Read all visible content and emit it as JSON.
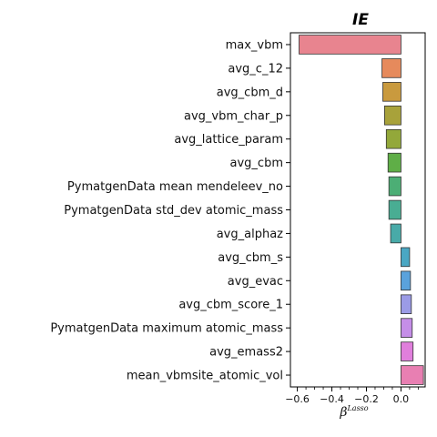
{
  "chart_data": {
    "type": "bar",
    "orientation": "horizontal",
    "title": "IE",
    "xlabel": "β",
    "xlabel_superscript": "Lasso",
    "xlim": [
      -0.64,
      0.14
    ],
    "xticks": [
      -0.6,
      -0.4,
      -0.2,
      0.0
    ],
    "xtick_labels": [
      "−0.6",
      "−0.4",
      "−0.2",
      "0.0"
    ],
    "categories": [
      "max_vbm",
      "avg_c_12",
      "avg_cbm_d",
      "avg_vbm_char_p",
      "avg_lattice_param",
      "avg_cbm",
      "PymatgenData mean mendeleev_no",
      "PymatgenData std_dev atomic_mass",
      "avg_alphaz",
      "avg_cbm_s",
      "avg_evac",
      "avg_cbm_score_1",
      "PymatgenData maximum atomic_mass",
      "avg_emass2",
      "mean_vbmsite_atomic_vol"
    ],
    "values": [
      -0.59,
      -0.11,
      -0.105,
      -0.095,
      -0.085,
      -0.075,
      -0.07,
      -0.07,
      -0.06,
      0.05,
      0.055,
      0.06,
      0.065,
      0.07,
      0.13
    ],
    "colors": [
      "#e8848f",
      "#e68a5c",
      "#c99a3e",
      "#a8a23a",
      "#93a83a",
      "#5fae47",
      "#4cae75",
      "#49ad93",
      "#48aaa8",
      "#4aa7c3",
      "#5aa2dc",
      "#9b9be6",
      "#c58ee8",
      "#e07fdc",
      "#e87fb2"
    ],
    "grid": false
  }
}
